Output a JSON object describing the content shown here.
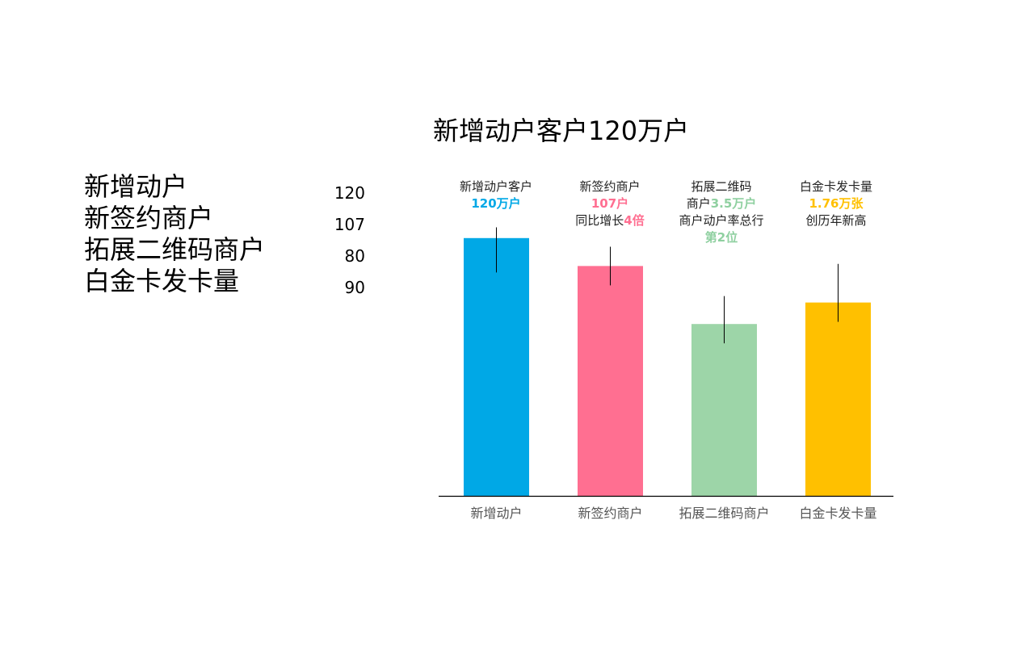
{
  "title": "新增动户客户120万户",
  "side_table": [
    {
      "label": "新增动户",
      "value": "120"
    },
    {
      "label": "新签约商户",
      "value": "107"
    },
    {
      "label": "拓展二维码商户",
      "value": "80"
    },
    {
      "label": "白金卡发卡量",
      "value": "90"
    }
  ],
  "annotations": [
    {
      "line1": "新增动户客户",
      "line2_hl": "120万户"
    },
    {
      "line1": "新签约商户",
      "line2_hl": "107户",
      "line3_pre": "同比增长",
      "line3_hl": "4倍"
    },
    {
      "line1": "拓展二维码",
      "line2_pre": "商户",
      "line2_hl": "3.5万户",
      "line3": "商户动户率总行",
      "line4_hl": "第2位"
    },
    {
      "line1": "白金卡发卡量",
      "line2_hl": "1.76万张",
      "line3": "创历年新高"
    }
  ],
  "chart_data": {
    "type": "bar",
    "categories": [
      "新增动户",
      "新签约商户",
      "拓展二维码商户",
      "白金卡发卡量"
    ],
    "values": [
      120,
      107,
      80,
      90
    ],
    "error_bars": [
      {
        "low": 104,
        "high": 125
      },
      {
        "low": 98,
        "high": 116
      },
      {
        "low": 71,
        "high": 93
      },
      {
        "low": 81,
        "high": 108
      }
    ],
    "colors": [
      "#00A8E6",
      "#FF6F91",
      "#9DD5A8",
      "#FFC000"
    ],
    "ylim": [
      0,
      150
    ],
    "title": "新增动户客户120万户",
    "xlabel": "",
    "ylabel": "",
    "grid": false,
    "show_y_axis": false
  }
}
